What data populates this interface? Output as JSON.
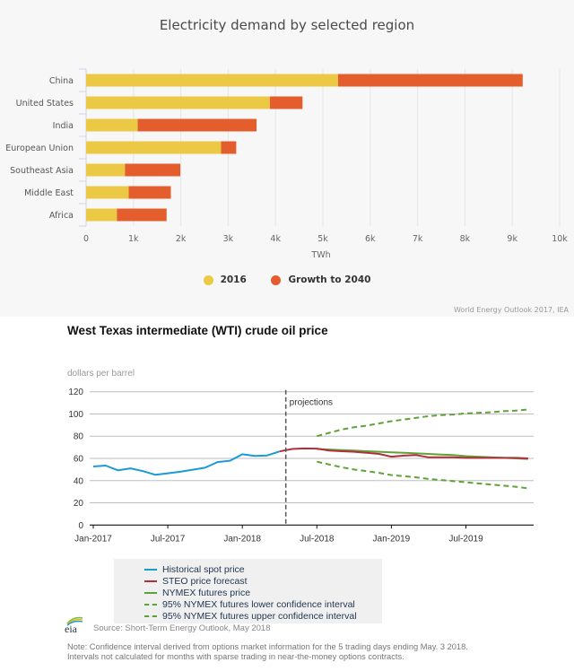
{
  "chart_data": [
    {
      "type": "bar",
      "stacked": true,
      "orientation": "horizontal",
      "title": "Electricity demand by selected region",
      "xlabel": "TWh",
      "xlim": [
        0,
        10000
      ],
      "xticks": [
        "0",
        "1k",
        "2k",
        "3k",
        "4k",
        "5k",
        "6k",
        "7k",
        "8k",
        "9k",
        "10k"
      ],
      "categories": [
        "China",
        "United States",
        "India",
        "European Union",
        "Southeast Asia",
        "Middle East",
        "Africa"
      ],
      "series": [
        {
          "name": "2016",
          "color": "#ebc944",
          "values": [
            5320,
            3880,
            1090,
            2850,
            820,
            900,
            650
          ]
        },
        {
          "name": "Growth to 2040",
          "color": "#e45e2d",
          "values": [
            3900,
            690,
            2510,
            320,
            1170,
            890,
            1050
          ]
        }
      ],
      "legend": "bottom",
      "grid": true,
      "credit": "World Energy Outlook 2017, IEA"
    },
    {
      "type": "line",
      "title": "West Texas intermediate (WTI) crude oil price",
      "ylabel": "dollars per barrel",
      "ylim": [
        0,
        120
      ],
      "yticks": [
        "0",
        "20",
        "40",
        "60",
        "80",
        "100",
        "120"
      ],
      "xticks": [
        "Jan-2017",
        "Jul-2017",
        "Jan-2018",
        "Jul-2018",
        "Jan-2019",
        "Jul-2019"
      ],
      "x_start": "Jan-2017",
      "x_end": "Dec-2019",
      "projections_label": "projections",
      "projections_start_month_index": 15.5,
      "series": [
        {
          "name": "Historical spot price",
          "color": "#1b9ad6",
          "dashed": false,
          "start_month_index": 0,
          "values": [
            52.7,
            53.5,
            49.3,
            51.0,
            48.5,
            45.2,
            46.6,
            48.0,
            49.8,
            51.6,
            56.7,
            57.9,
            63.7,
            62.2,
            62.7,
            66.3
          ]
        },
        {
          "name": "STEO price forecast",
          "color": "#b22e3a",
          "dashed": false,
          "start_month_index": 15,
          "values": [
            66.3,
            68.5,
            69.0,
            68.8,
            67.0,
            66.5,
            66.0,
            65.0,
            64.0,
            61.5,
            62.5,
            63.0,
            61.0,
            61.0,
            61.0,
            60.5,
            60.5,
            60.5,
            60.5,
            60.5,
            60.0
          ]
        },
        {
          "name": "NYMEX futures price",
          "color": "#5ea33a",
          "dashed": false,
          "start_month_index": 18,
          "values": [
            68.5,
            68.0,
            67.5,
            67.0,
            66.5,
            66.0,
            65.5,
            65.0,
            64.5,
            64.0,
            63.5,
            63.0,
            62.0,
            61.5,
            61.0,
            60.5,
            60.0,
            59.5
          ]
        },
        {
          "name": "95% NYMEX futures lower confidence interval",
          "color": "#5ea33a",
          "dashed": true,
          "start_month_index": 18,
          "values": [
            57.0,
            54.5,
            52.0,
            50.0,
            48.5,
            47.0,
            45.0,
            44.0,
            43.0,
            41.5,
            40.5,
            39.5,
            38.5,
            37.5,
            36.5,
            35.5,
            34.5,
            33.0
          ]
        },
        {
          "name": "95% NYMEX futures upper confidence interval",
          "color": "#5ea33a",
          "dashed": true,
          "start_month_index": 18,
          "values": [
            80.0,
            83.0,
            86.0,
            88.0,
            89.5,
            91.5,
            93.5,
            95.0,
            96.5,
            98.0,
            99.0,
            99.5,
            100.5,
            101.0,
            101.5,
            102.5,
            103.0,
            104.0
          ]
        }
      ],
      "legend": "bottom",
      "grid": true,
      "source": "Source: Short-Term Energy Outlook, May 2018",
      "note_lines": [
        "Note: Confidence interval derived from options market information for the 5 trading days ending May. 3 2018.",
        "Intervals not calculated for months with sparse trading in near-the-money options contracts."
      ],
      "logo_text": "eia"
    }
  ],
  "colors": {
    "bar_2016": "#ebc944",
    "bar_growth": "#e45e2d",
    "panel_bg": "#f7f7f7",
    "legend_bg": "#f0f0f0"
  }
}
